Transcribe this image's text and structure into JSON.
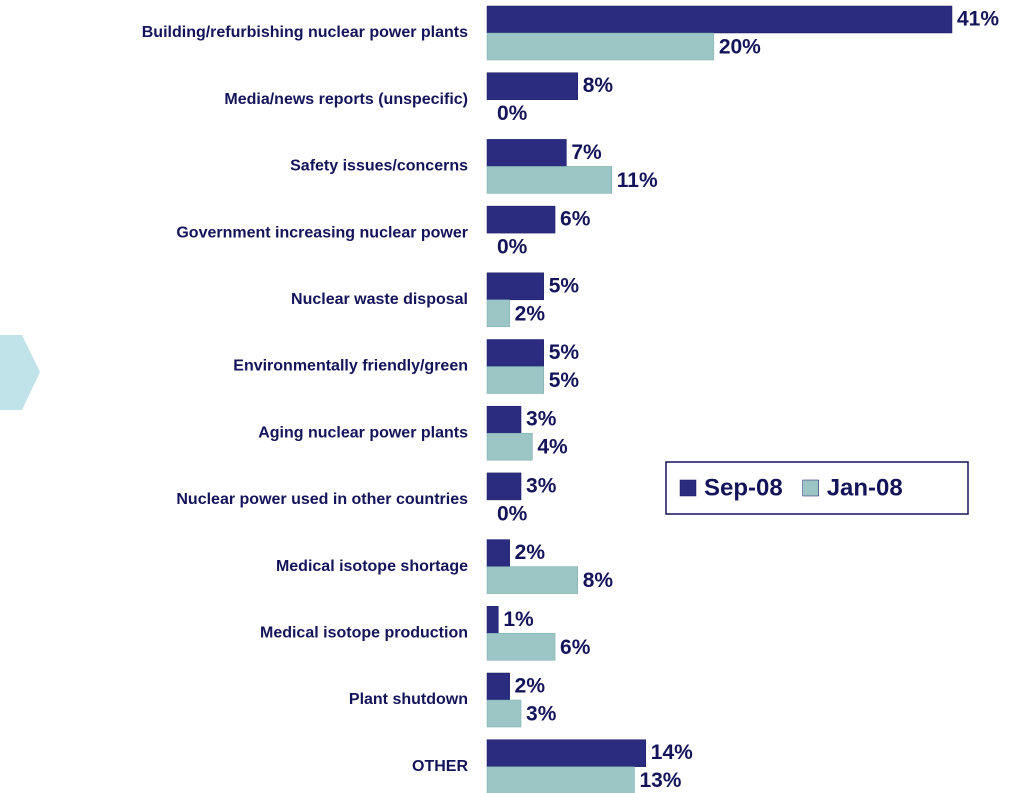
{
  "chart_data": {
    "type": "bar",
    "orientation": "horizontal",
    "categories": [
      "Building/refurbishing nuclear power plants",
      "Media/news reports (unspecific)",
      "Safety issues/concerns",
      "Government increasing nuclear power",
      "Nuclear waste disposal",
      "Environmentally friendly/green",
      "Aging nuclear power plants",
      "Nuclear power used in other countries",
      "Medical isotope shortage",
      "Medical isotope production",
      "Plant shutdown",
      "OTHER"
    ],
    "series": [
      {
        "name": "Sep-08",
        "color": "#2b2b80",
        "values": [
          41,
          8,
          7,
          6,
          5,
          5,
          3,
          3,
          2,
          1,
          2,
          14
        ],
        "value_labels": [
          "41%",
          "8%",
          "7%",
          "6%",
          "5%",
          "5%",
          "3%",
          "3%",
          "2%",
          "1%",
          "2%",
          "14%"
        ]
      },
      {
        "name": "Jan-08",
        "color": "#9cc6c6",
        "values": [
          20,
          0,
          11,
          0,
          2,
          5,
          4,
          0,
          8,
          6,
          3,
          13
        ],
        "value_labels": [
          "20%",
          "0%",
          "11%",
          "0%",
          "2%",
          "5%",
          "4%",
          "0%",
          "8%",
          "6%",
          "3%",
          "13%"
        ]
      }
    ],
    "legend": "right"
  }
}
